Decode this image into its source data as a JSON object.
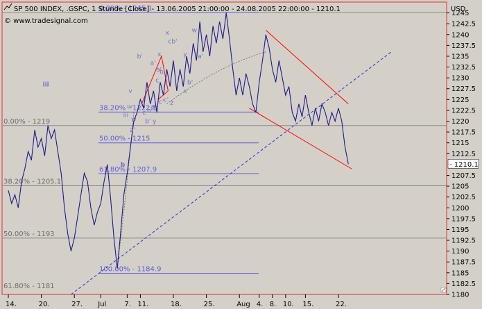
{
  "header": {
    "title": "SP 500 INDEX, .GSPC, 1 Stunde [Close] - 13.06.2005 21:00:00 - 24.08.2005 22:00:00 - 1210.1",
    "watermark": "© www.tradesignal.com",
    "currency": "USD"
  },
  "colors": {
    "plot_bg": "#d4d0c8",
    "plot_border": "#e03030",
    "price_line": "#1b1b8c",
    "fib_line": "#5b5bd8",
    "grid_line": "#8a8a8a",
    "trend_line": "#2b2bd6",
    "channel_line": "#ff0000",
    "fib_text_left": "#6e6e6e",
    "fib_text_mid": "#5b5bd8",
    "wave_label_b": "#00b000",
    "wave_label_iii": "#0000aa"
  },
  "chart_data": {
    "type": "line",
    "title": "SP 500 INDEX, .GSPC, 1 Stunde [Close]",
    "ylim": [
      1180,
      1247.5
    ],
    "y_ticks": [
      "1245",
      "1242.5",
      "1240",
      "1237.5",
      "1235",
      "1232.5",
      "1230",
      "1227.5",
      "1225",
      "1222.5",
      "1220",
      "1217.5",
      "1215",
      "1212.5",
      "1210.1",
      "1207.5",
      "1205",
      "1202.5",
      "1200",
      "1197.5",
      "1195",
      "1192.5",
      "1190",
      "1187.5",
      "1185",
      "1182.5",
      "1180"
    ],
    "last_value": "1210.1",
    "x_ticks": [
      {
        "label": "14.",
        "t": 0.0
      },
      {
        "label": "20.",
        "t": 5.0
      },
      {
        "label": "27.",
        "t": 10.0
      },
      {
        "label": "Jul",
        "t": 14.0
      },
      {
        "label": "7.",
        "t": 18.0
      },
      {
        "label": "11.",
        "t": 20.0
      },
      {
        "label": "18.",
        "t": 25.0
      },
      {
        "label": "25.",
        "t": 30.0
      },
      {
        "label": "Aug",
        "t": 35.0
      },
      {
        "label": "4.",
        "t": 38.0
      },
      {
        "label": "8.",
        "t": 40.0
      },
      {
        "label": "10.",
        "t": 42.0
      },
      {
        "label": "15.",
        "t": 45.0
      },
      {
        "label": "22.",
        "t": 50.0
      }
    ],
    "series": [
      {
        "values": [
          [
            0,
            1204
          ],
          [
            0.5,
            1201
          ],
          [
            1,
            1203
          ],
          [
            1.5,
            1200
          ],
          [
            2,
            1206
          ],
          [
            2.5,
            1209
          ],
          [
            3,
            1213
          ],
          [
            3.5,
            1211
          ],
          [
            4,
            1218
          ],
          [
            4.5,
            1214
          ],
          [
            5,
            1216
          ],
          [
            5.5,
            1212
          ],
          [
            6,
            1219
          ],
          [
            6.5,
            1216
          ],
          [
            7,
            1218
          ],
          [
            7.5,
            1213
          ],
          [
            8,
            1208
          ],
          [
            8.5,
            1200
          ],
          [
            9,
            1194
          ],
          [
            9.5,
            1190
          ],
          [
            10,
            1193
          ],
          [
            10.5,
            1198
          ],
          [
            11,
            1203
          ],
          [
            11.5,
            1208
          ],
          [
            12,
            1206
          ],
          [
            12.5,
            1200
          ],
          [
            13,
            1196
          ],
          [
            13.5,
            1199
          ],
          [
            14,
            1201
          ],
          [
            14.5,
            1206
          ],
          [
            15,
            1210
          ],
          [
            15.5,
            1202
          ],
          [
            16,
            1193
          ],
          [
            16.5,
            1186
          ],
          [
            17,
            1194
          ],
          [
            17.5,
            1203
          ],
          [
            18,
            1208
          ],
          [
            18.5,
            1214
          ],
          [
            19,
            1220
          ],
          [
            19.5,
            1222
          ],
          [
            20,
            1225
          ],
          [
            20.5,
            1223
          ],
          [
            21,
            1229
          ],
          [
            21.5,
            1224
          ],
          [
            22,
            1227
          ],
          [
            22.5,
            1222
          ],
          [
            23,
            1229
          ],
          [
            23.5,
            1226
          ],
          [
            24,
            1232
          ],
          [
            24.5,
            1228
          ],
          [
            25,
            1234
          ],
          [
            25.5,
            1227
          ],
          [
            26,
            1232
          ],
          [
            26.5,
            1228
          ],
          [
            27,
            1235
          ],
          [
            27.5,
            1231
          ],
          [
            28,
            1238
          ],
          [
            28.5,
            1234
          ],
          [
            29,
            1243
          ],
          [
            29.5,
            1236
          ],
          [
            30,
            1240
          ],
          [
            30.5,
            1235
          ],
          [
            31,
            1242
          ],
          [
            31.5,
            1238
          ],
          [
            32,
            1243
          ],
          [
            32.5,
            1239
          ],
          [
            33,
            1245
          ],
          [
            33.5,
            1239
          ],
          [
            34,
            1232
          ],
          [
            34.5,
            1226
          ],
          [
            35,
            1230
          ],
          [
            35.5,
            1226
          ],
          [
            36,
            1231
          ],
          [
            36.5,
            1228
          ],
          [
            37,
            1224
          ],
          [
            37.5,
            1222
          ],
          [
            38,
            1229
          ],
          [
            38.5,
            1234
          ],
          [
            39,
            1240
          ],
          [
            39.5,
            1237
          ],
          [
            40,
            1232
          ],
          [
            40.5,
            1229
          ],
          [
            41,
            1234
          ],
          [
            41.5,
            1230
          ],
          [
            42,
            1226
          ],
          [
            42.5,
            1228
          ],
          [
            43,
            1222
          ],
          [
            43.5,
            1220
          ],
          [
            44,
            1224
          ],
          [
            44.5,
            1221
          ],
          [
            45,
            1226
          ],
          [
            45.5,
            1222
          ],
          [
            46,
            1219
          ],
          [
            46.5,
            1223
          ],
          [
            47,
            1220
          ],
          [
            47.5,
            1224
          ],
          [
            48,
            1222
          ],
          [
            48.5,
            1219
          ],
          [
            49,
            1222
          ],
          [
            49.5,
            1220
          ],
          [
            50,
            1223
          ],
          [
            50.5,
            1220
          ],
          [
            51,
            1214
          ],
          [
            51.5,
            1210.1
          ]
        ]
      }
    ],
    "fib_left": [
      {
        "label": "0.00% - 1219",
        "y": 1219,
        "x0": 0,
        "x1": 15
      },
      {
        "label": "38.20% - 1205.1",
        "y": 1205.1,
        "x0": 0,
        "x1": 15
      },
      {
        "label": "50.00% - 1193",
        "y": 1193,
        "x0": 0,
        "x1": 15
      },
      {
        "label": "61.80% - 1181",
        "y": 1181,
        "x0": 0,
        "x1": 15
      }
    ],
    "fib_grid": [
      1219,
      1205.1,
      1193,
      1245.1
    ],
    "fib_mid": [
      {
        "label": "0.00% - 1245.1",
        "y": 1245.1,
        "x0": 16.5,
        "x1": 33
      },
      {
        "label": "38.20% - 1222.1",
        "y": 1222.1,
        "x0": 16.5,
        "x1": 33
      },
      {
        "label": "50.00% - 1215",
        "y": 1215,
        "x0": 16.5,
        "x1": 33
      },
      {
        "label": "61.80% - 1207.9",
        "y": 1207.9,
        "x0": 16.5,
        "x1": 33
      },
      {
        "label": "100.00% - 1184.9",
        "y": 1184.9,
        "x0": 16.5,
        "x1": 33
      }
    ],
    "trend_line": {
      "from": [
        9.5,
        1180
      ],
      "to": [
        58,
        1236
      ]
    },
    "channel": {
      "upper": {
        "from": [
          39,
          1241
        ],
        "to": [
          51.5,
          1224
        ]
      },
      "lower": {
        "from": [
          36.5,
          1223
        ],
        "to": [
          52,
          1209
        ]
      }
    },
    "wave_labels": [
      {
        "text": "iii",
        "t": 5.2,
        "y": 1228,
        "color": "#0000aa",
        "size": 11
      },
      {
        "text": "b",
        "t": 17.0,
        "y": 1209.5,
        "color": "#00b000",
        "size": 11
      },
      {
        "text": "b'",
        "t": 19.5,
        "y": 1234.5
      },
      {
        "text": "a'",
        "t": 21.5,
        "y": 1233
      },
      {
        "text": "x",
        "t": 22.6,
        "y": 1235
      },
      {
        "text": "x",
        "t": 23.8,
        "y": 1240
      },
      {
        "text": "cb'",
        "t": 24.2,
        "y": 1238
      },
      {
        "text": "a'",
        "t": 22.4,
        "y": 1231.5
      },
      {
        "text": "b",
        "t": 22.9,
        "y": 1231
      },
      {
        "text": "c",
        "t": 22.3,
        "y": 1229
      },
      {
        "text": "w",
        "t": 27.8,
        "y": 1240.5
      },
      {
        "text": "y",
        "t": 26.5,
        "y": 1235
      },
      {
        "text": "a'",
        "t": 28.7,
        "y": 1234.5
      },
      {
        "text": "v",
        "t": 18.2,
        "y": 1226.5
      },
      {
        "text": "iv",
        "t": 18.0,
        "y": 1223
      },
      {
        "text": "iii",
        "t": 17.4,
        "y": 1221
      },
      {
        "text": "c",
        "t": 20.3,
        "y": 1221.5
      },
      {
        "text": "a",
        "t": 21.6,
        "y": 1223
      },
      {
        "text": "b'",
        "t": 21.0,
        "y": 1222
      },
      {
        "text": "c'",
        "t": 21.8,
        "y": 1222.5
      },
      {
        "text": "c'",
        "t": 23.5,
        "y": 1224.5
      },
      {
        "text": "c'",
        "t": 22.8,
        "y": 1224
      },
      {
        "text": "z",
        "t": 24.5,
        "y": 1223.8
      },
      {
        "text": "x",
        "t": 26.5,
        "y": 1226.5
      },
      {
        "text": "b'",
        "t": 27.1,
        "y": 1228.5
      },
      {
        "text": "w",
        "t": 18.6,
        "y": 1220
      },
      {
        "text": "a'",
        "t": 18.4,
        "y": 1217.5
      },
      {
        "text": "b' y",
        "t": 20.7,
        "y": 1219.5
      }
    ]
  }
}
